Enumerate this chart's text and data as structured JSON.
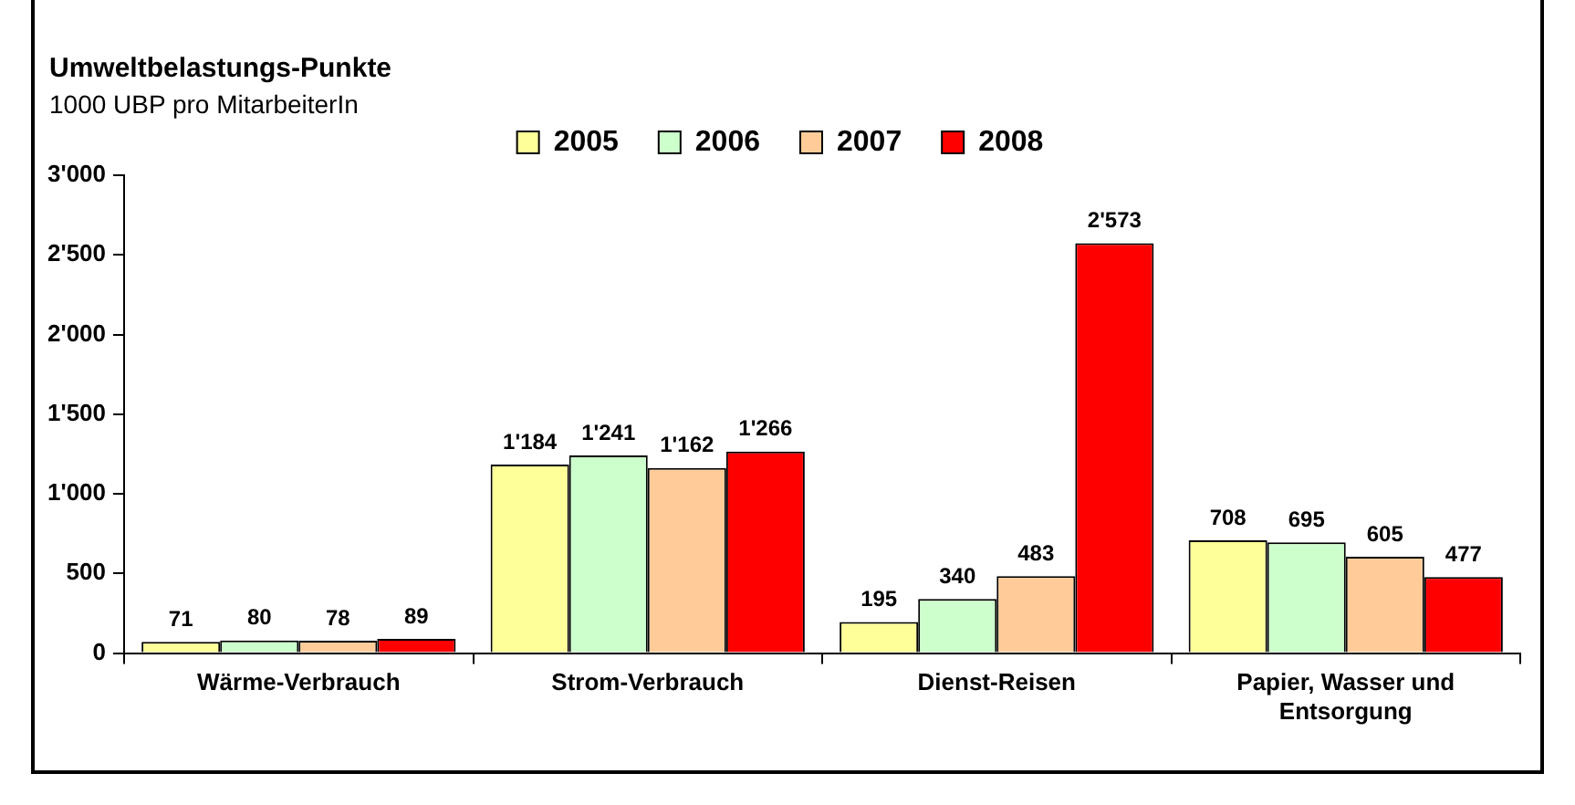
{
  "chart_data": {
    "type": "bar",
    "title": "Umweltbelastungs-Punkte",
    "subtitle": "1000 UBP pro MitarbeiterIn",
    "categories": [
      "Wärme-Verbrauch",
      "Strom-Verbrauch",
      "Dienst-Reisen",
      "Papier, Wasser und Entsorgung"
    ],
    "series": [
      {
        "name": "2005",
        "color": "#ffff99",
        "values": [
          71,
          1184,
          195,
          708
        ],
        "value_labels": [
          "71",
          "1'184",
          "195",
          "708"
        ]
      },
      {
        "name": "2006",
        "color": "#ccffcc",
        "values": [
          80,
          1241,
          340,
          695
        ],
        "value_labels": [
          "80",
          "1'241",
          "340",
          "695"
        ]
      },
      {
        "name": "2007",
        "color": "#ffcc99",
        "values": [
          78,
          1162,
          483,
          605
        ],
        "value_labels": [
          "78",
          "1'162",
          "483",
          "605"
        ]
      },
      {
        "name": "2008",
        "color": "#ff0000",
        "values": [
          89,
          1266,
          2573,
          477
        ],
        "value_labels": [
          "89",
          "1'266",
          "2'573",
          "477"
        ]
      }
    ],
    "ylim": [
      0,
      3000
    ],
    "yticks": [
      0,
      {
        "value": 500,
        "label": "500"
      },
      {
        "value": 1000,
        "label": "1'000"
      },
      {
        "value": 1500,
        "label": "1'500"
      },
      {
        "value": 2000,
        "label": "2'000"
      },
      {
        "value": 2500,
        "label": "2'500"
      },
      {
        "value": 3000,
        "label": "3'000"
      }
    ],
    "grid": false,
    "legend": "top"
  }
}
